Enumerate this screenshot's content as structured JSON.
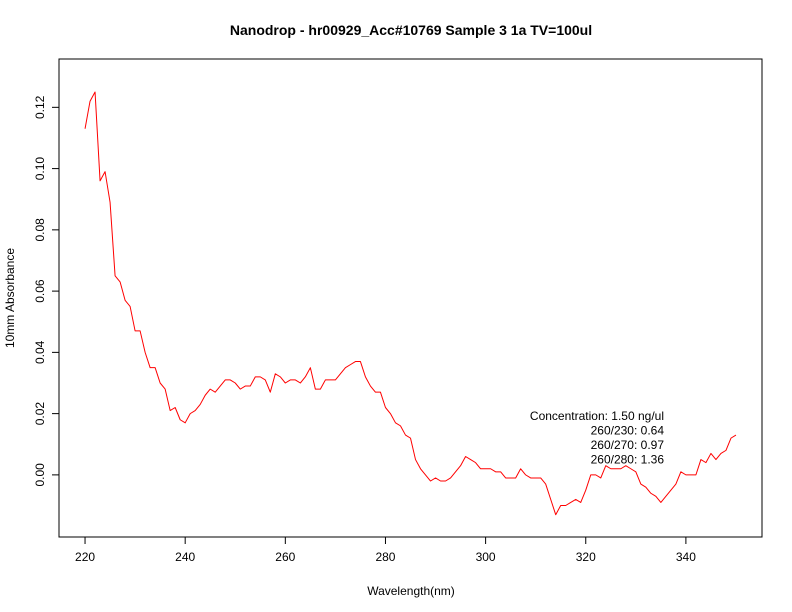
{
  "chart_data": {
    "type": "line",
    "title": "Nanodrop - hr00929_Acc#10769 Sample 3 1a TV=100ul",
    "xlabel": "Wavelength(nm)",
    "ylabel": "10mm Absorbance",
    "xlim": [
      220,
      350
    ],
    "ylim": [
      -0.0145,
      0.13
    ],
    "xticks": [
      220,
      240,
      260,
      280,
      300,
      320,
      340
    ],
    "yticks": [
      0.0,
      0.02,
      0.04,
      0.06,
      0.08,
      0.1,
      0.12
    ],
    "xtick_labels": [
      "220",
      "240",
      "260",
      "280",
      "300",
      "320",
      "340"
    ],
    "ytick_labels": [
      "0.00",
      "0.02",
      "0.04",
      "0.06",
      "0.08",
      "0.10",
      "0.12"
    ],
    "grid": false,
    "legend": null,
    "annotations": [
      "Concentration: 1.50 ng/ul",
      "260/230: 0.64",
      "260/270: 0.97",
      "260/280: 1.36"
    ],
    "series": [
      {
        "color": "#ff0000",
        "x": [
          220,
          221,
          222,
          223,
          224,
          225,
          226,
          227,
          228,
          229,
          230,
          231,
          232,
          233,
          234,
          235,
          236,
          237,
          238,
          239,
          240,
          241,
          242,
          243,
          244,
          245,
          246,
          247,
          248,
          249,
          250,
          251,
          252,
          253,
          254,
          255,
          256,
          257,
          258,
          259,
          260,
          261,
          262,
          263,
          264,
          265,
          266,
          267,
          268,
          269,
          270,
          271,
          272,
          273,
          274,
          275,
          276,
          277,
          278,
          279,
          280,
          281,
          282,
          283,
          284,
          285,
          286,
          287,
          288,
          289,
          290,
          291,
          292,
          293,
          294,
          295,
          296,
          297,
          298,
          299,
          300,
          301,
          302,
          303,
          304,
          305,
          306,
          307,
          308,
          309,
          310,
          311,
          312,
          313,
          314,
          315,
          316,
          317,
          318,
          319,
          320,
          321,
          322,
          323,
          324,
          325,
          326,
          327,
          328,
          329,
          330,
          331,
          332,
          333,
          334,
          335,
          336,
          337,
          338,
          339,
          340,
          341,
          342,
          343,
          344,
          345,
          346,
          347,
          348,
          349,
          350
        ],
        "values": [
          0.113,
          0.122,
          0.125,
          0.096,
          0.099,
          0.089,
          0.065,
          0.063,
          0.057,
          0.055,
          0.047,
          0.047,
          0.04,
          0.035,
          0.035,
          0.03,
          0.028,
          0.021,
          0.022,
          0.018,
          0.017,
          0.02,
          0.021,
          0.023,
          0.026,
          0.028,
          0.027,
          0.029,
          0.031,
          0.031,
          0.03,
          0.028,
          0.029,
          0.029,
          0.032,
          0.032,
          0.031,
          0.027,
          0.033,
          0.032,
          0.03,
          0.031,
          0.031,
          0.03,
          0.032,
          0.035,
          0.028,
          0.028,
          0.031,
          0.031,
          0.031,
          0.033,
          0.035,
          0.036,
          0.037,
          0.037,
          0.032,
          0.029,
          0.027,
          0.027,
          0.022,
          0.02,
          0.017,
          0.016,
          0.013,
          0.012,
          0.005,
          0.002,
          0.0,
          -0.002,
          -0.001,
          -0.002,
          -0.002,
          -0.001,
          0.001,
          0.003,
          0.006,
          0.005,
          0.004,
          0.002,
          0.002,
          0.002,
          0.001,
          0.001,
          -0.001,
          -0.001,
          -0.001,
          0.002,
          0.0,
          -0.001,
          -0.001,
          -0.001,
          -0.003,
          -0.008,
          -0.013,
          -0.01,
          -0.01,
          -0.009,
          -0.008,
          -0.009,
          -0.005,
          0.0,
          0.0,
          -0.001,
          0.003,
          0.002,
          0.002,
          0.002,
          0.003,
          0.002,
          0.001,
          -0.003,
          -0.004,
          -0.006,
          -0.007,
          -0.009,
          -0.007,
          -0.005,
          -0.003,
          0.001,
          0.0,
          0.0,
          0.0,
          0.005,
          0.004,
          0.007,
          0.005,
          0.007,
          0.008,
          0.012,
          0.013
        ]
      }
    ]
  }
}
